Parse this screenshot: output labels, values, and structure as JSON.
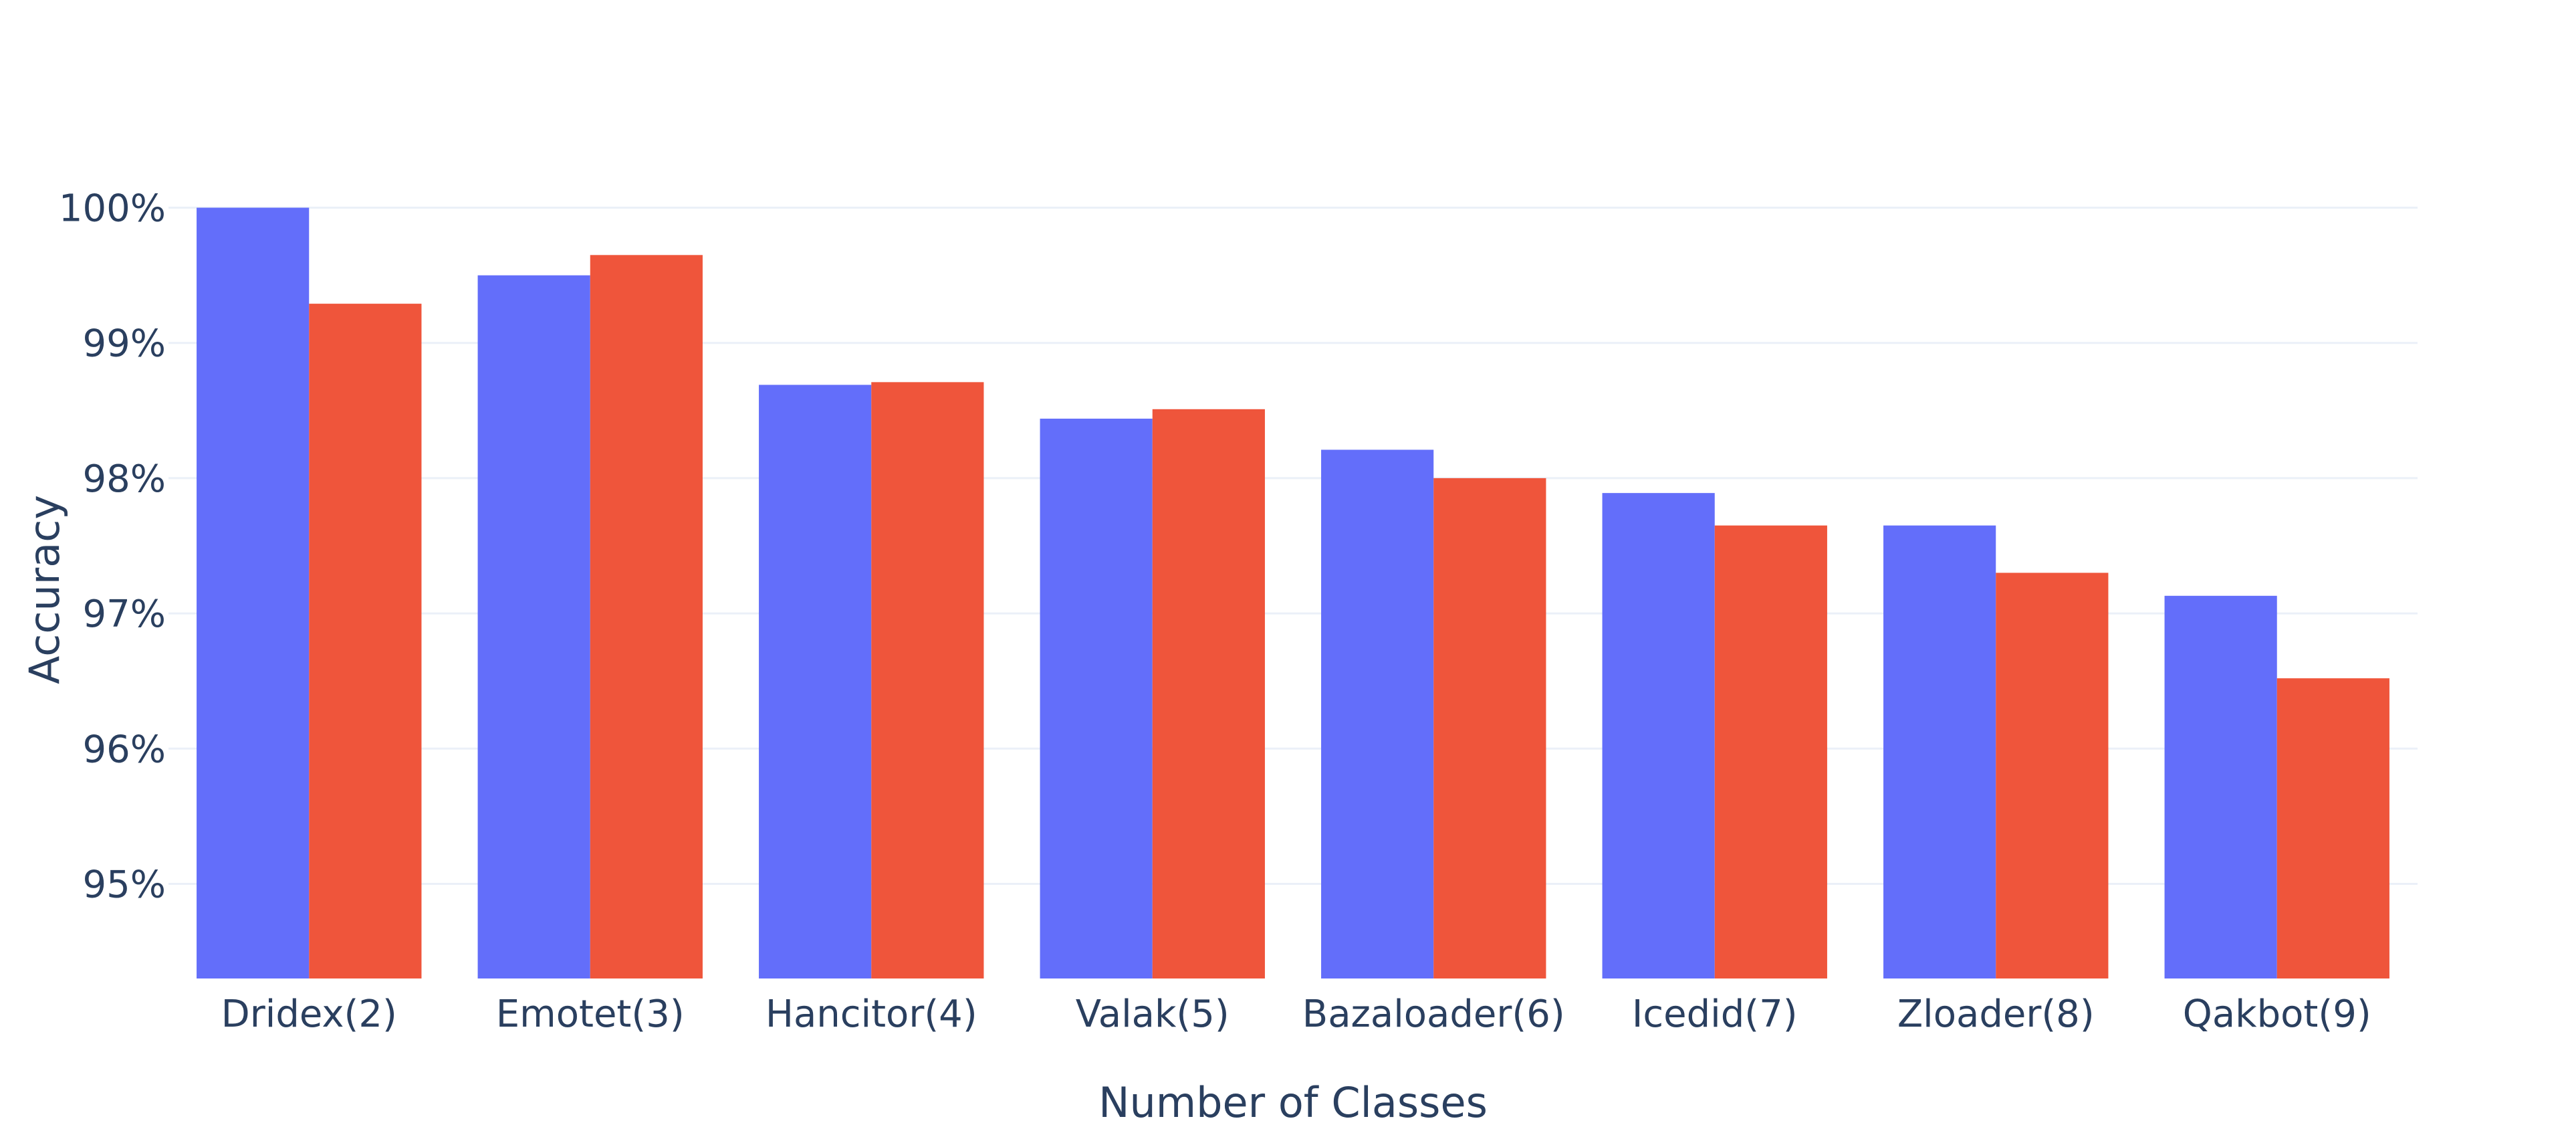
{
  "chart_data": {
    "type": "bar",
    "title": "",
    "xlabel": "Number of Classes",
    "ylabel": "Accuracy",
    "categories": [
      "Dridex(2)",
      "Emotet(3)",
      "Hancitor(4)",
      "Valak(5)",
      "Bazaloader(6)",
      "Icedid(7)",
      "Zloader(8)",
      "Qakbot(9)"
    ],
    "series": [
      {
        "color": "#636efa",
        "values": [
          100.0,
          99.5,
          98.69,
          98.44,
          98.21,
          97.89,
          97.65,
          97.13
        ]
      },
      {
        "color": "#ef553b",
        "values": [
          99.29,
          99.65,
          98.71,
          98.51,
          98.0,
          97.65,
          97.3,
          96.52
        ]
      }
    ],
    "ylim": [
      94.3,
      100.25
    ],
    "yticks": [
      95,
      96,
      97,
      98,
      99,
      100
    ],
    "ytick_labels": [
      "95%",
      "96%",
      "97%",
      "98%",
      "99%",
      "100%"
    ],
    "grid": "horizontal",
    "legend": "none"
  }
}
